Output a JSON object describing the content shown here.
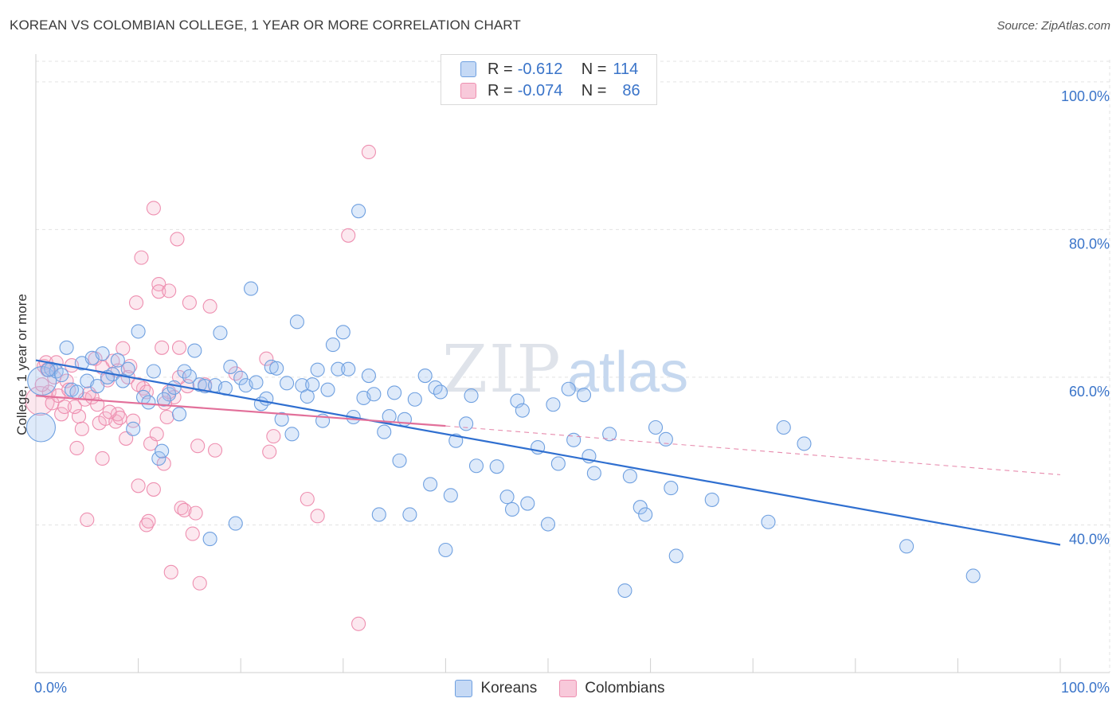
{
  "title": "KOREAN VS COLOMBIAN COLLEGE, 1 YEAR OR MORE CORRELATION CHART",
  "source": "Source: ZipAtlas.com",
  "watermark": {
    "zip": "ZIP",
    "atlas": "atlas"
  },
  "legend": {
    "r_label": "R =",
    "n_label": "N =",
    "series": [
      {
        "name": "Koreans",
        "r": "-0.612",
        "n": "114",
        "color": "#6fa0e0"
      },
      {
        "name": "Colombians",
        "r": "-0.074",
        "n": "86",
        "color": "#ee8fb0"
      }
    ]
  },
  "chart_data": {
    "type": "scatter",
    "title": "KOREAN VS COLOMBIAN COLLEGE, 1 YEAR OR MORE CORRELATION CHART",
    "xlabel": "",
    "ylabel": "College, 1 year or more",
    "xlim": [
      0,
      100
    ],
    "ylim": [
      20,
      103
    ],
    "x_tick_labels": [
      "0.0%",
      "100.0%"
    ],
    "y_tick_labels": [
      "40.0%",
      "60.0%",
      "80.0%",
      "100.0%"
    ],
    "y_ticks": [
      40,
      60,
      80,
      100
    ],
    "series": [
      {
        "name": "Koreans",
        "color": "#6fa0e0",
        "line_color": "#2f6fd0",
        "trend": {
          "x": [
            0,
            100
          ],
          "y": [
            62.3,
            37.3
          ]
        },
        "points": [
          {
            "x": 0.5,
            "y": 53.2,
            "big": true
          },
          {
            "x": 0.6,
            "y": 59.5,
            "big": true
          },
          {
            "x": 1.5,
            "y": 61.1
          },
          {
            "x": 2.0,
            "y": 60.8
          },
          {
            "x": 3.0,
            "y": 64.0
          },
          {
            "x": 3.5,
            "y": 58.3
          },
          {
            "x": 4.5,
            "y": 61.9
          },
          {
            "x": 5.0,
            "y": 59.5
          },
          {
            "x": 5.5,
            "y": 62.6
          },
          {
            "x": 6.5,
            "y": 63.2
          },
          {
            "x": 7.5,
            "y": 60.4
          },
          {
            "x": 8.0,
            "y": 62.3
          },
          {
            "x": 9.0,
            "y": 61.1
          },
          {
            "x": 9.5,
            "y": 53.0
          },
          {
            "x": 10.0,
            "y": 66.2
          },
          {
            "x": 10.5,
            "y": 57.3
          },
          {
            "x": 11.0,
            "y": 56.6
          },
          {
            "x": 11.5,
            "y": 60.8
          },
          {
            "x": 12.0,
            "y": 49.0
          },
          {
            "x": 12.3,
            "y": 50.0
          },
          {
            "x": 13.0,
            "y": 57.7
          },
          {
            "x": 13.5,
            "y": 58.6
          },
          {
            "x": 14.0,
            "y": 55.0
          },
          {
            "x": 14.5,
            "y": 60.8
          },
          {
            "x": 15.0,
            "y": 60.1
          },
          {
            "x": 15.5,
            "y": 63.6
          },
          {
            "x": 16.0,
            "y": 59.0
          },
          {
            "x": 16.5,
            "y": 58.8
          },
          {
            "x": 17.0,
            "y": 38.1
          },
          {
            "x": 17.5,
            "y": 58.9
          },
          {
            "x": 18.0,
            "y": 66.0
          },
          {
            "x": 18.5,
            "y": 58.5
          },
          {
            "x": 19.0,
            "y": 61.4
          },
          {
            "x": 19.5,
            "y": 40.2
          },
          {
            "x": 20.0,
            "y": 59.9
          },
          {
            "x": 20.5,
            "y": 58.9
          },
          {
            "x": 21.0,
            "y": 72.0
          },
          {
            "x": 21.5,
            "y": 59.3
          },
          {
            "x": 22.0,
            "y": 56.4
          },
          {
            "x": 22.5,
            "y": 57.1
          },
          {
            "x": 23.0,
            "y": 61.4
          },
          {
            "x": 23.5,
            "y": 61.2
          },
          {
            "x": 24.0,
            "y": 54.3
          },
          {
            "x": 24.5,
            "y": 59.2
          },
          {
            "x": 25.0,
            "y": 52.3
          },
          {
            "x": 25.5,
            "y": 67.5
          },
          {
            "x": 26.0,
            "y": 58.9
          },
          {
            "x": 26.5,
            "y": 57.4
          },
          {
            "x": 27.0,
            "y": 59.0
          },
          {
            "x": 27.5,
            "y": 61.0
          },
          {
            "x": 28.0,
            "y": 54.1
          },
          {
            "x": 28.5,
            "y": 58.3
          },
          {
            "x": 29.0,
            "y": 64.4
          },
          {
            "x": 29.5,
            "y": 61.1
          },
          {
            "x": 30.0,
            "y": 66.1
          },
          {
            "x": 30.5,
            "y": 61.1
          },
          {
            "x": 31.0,
            "y": 54.6
          },
          {
            "x": 31.5,
            "y": 82.5
          },
          {
            "x": 32.0,
            "y": 57.2
          },
          {
            "x": 32.5,
            "y": 60.2
          },
          {
            "x": 33.0,
            "y": 57.7
          },
          {
            "x": 33.5,
            "y": 41.4
          },
          {
            "x": 34.0,
            "y": 52.6
          },
          {
            "x": 34.5,
            "y": 54.7
          },
          {
            "x": 35.0,
            "y": 57.9
          },
          {
            "x": 35.5,
            "y": 48.7
          },
          {
            "x": 36.0,
            "y": 54.3
          },
          {
            "x": 36.5,
            "y": 41.4
          },
          {
            "x": 37.0,
            "y": 57.0
          },
          {
            "x": 38.0,
            "y": 60.2
          },
          {
            "x": 38.5,
            "y": 45.5
          },
          {
            "x": 39.0,
            "y": 58.6
          },
          {
            "x": 39.5,
            "y": 58.0
          },
          {
            "x": 40.0,
            "y": 36.6
          },
          {
            "x": 40.5,
            "y": 44.0
          },
          {
            "x": 41.0,
            "y": 51.4
          },
          {
            "x": 42.0,
            "y": 53.7
          },
          {
            "x": 42.5,
            "y": 57.5
          },
          {
            "x": 43.0,
            "y": 48.0
          },
          {
            "x": 45.0,
            "y": 47.9
          },
          {
            "x": 46.0,
            "y": 43.8
          },
          {
            "x": 46.5,
            "y": 42.1
          },
          {
            "x": 47.0,
            "y": 56.8
          },
          {
            "x": 47.5,
            "y": 55.5
          },
          {
            "x": 48.0,
            "y": 42.9
          },
          {
            "x": 49.0,
            "y": 50.5
          },
          {
            "x": 50.0,
            "y": 40.1
          },
          {
            "x": 50.5,
            "y": 56.3
          },
          {
            "x": 51.0,
            "y": 48.3
          },
          {
            "x": 52.0,
            "y": 58.4
          },
          {
            "x": 52.5,
            "y": 51.5
          },
          {
            "x": 53.5,
            "y": 57.6
          },
          {
            "x": 54.0,
            "y": 49.3
          },
          {
            "x": 54.5,
            "y": 47.0
          },
          {
            "x": 56.0,
            "y": 52.3
          },
          {
            "x": 57.5,
            "y": 31.1
          },
          {
            "x": 58.0,
            "y": 46.6
          },
          {
            "x": 59.0,
            "y": 42.4
          },
          {
            "x": 59.5,
            "y": 41.4
          },
          {
            "x": 60.5,
            "y": 53.2
          },
          {
            "x": 61.5,
            "y": 51.6
          },
          {
            "x": 62.0,
            "y": 45.0
          },
          {
            "x": 62.5,
            "y": 35.8
          },
          {
            "x": 66.0,
            "y": 43.4
          },
          {
            "x": 71.5,
            "y": 40.4
          },
          {
            "x": 73.0,
            "y": 53.2
          },
          {
            "x": 75.0,
            "y": 51.0
          },
          {
            "x": 85.0,
            "y": 37.1
          },
          {
            "x": 91.5,
            "y": 33.1
          },
          {
            "x": 1.2,
            "y": 61.0
          },
          {
            "x": 2.5,
            "y": 60.3
          },
          {
            "x": 4.0,
            "y": 58.0
          },
          {
            "x": 6.0,
            "y": 58.8
          },
          {
            "x": 7.0,
            "y": 60.0
          },
          {
            "x": 8.5,
            "y": 59.5
          },
          {
            "x": 12.5,
            "y": 57.0
          }
        ]
      },
      {
        "name": "Colombians",
        "color": "#ee8fb0",
        "line_color": "#e2709a",
        "trend": {
          "x": [
            0,
            40
          ],
          "y": [
            57.5,
            53.4
          ]
        },
        "trend_extension": {
          "x": [
            40,
            100
          ],
          "y": [
            53.4,
            46.8
          ]
        },
        "points": [
          {
            "x": 0.4,
            "y": 56.8,
            "big": true
          },
          {
            "x": 0.8,
            "y": 61.5
          },
          {
            "x": 1.0,
            "y": 62.0
          },
          {
            "x": 1.3,
            "y": 58.0
          },
          {
            "x": 1.6,
            "y": 56.5
          },
          {
            "x": 1.8,
            "y": 60.0
          },
          {
            "x": 2.2,
            "y": 57.5
          },
          {
            "x": 2.5,
            "y": 55.0
          },
          {
            "x": 2.8,
            "y": 56.0
          },
          {
            "x": 3.0,
            "y": 59.5
          },
          {
            "x": 3.5,
            "y": 61.6
          },
          {
            "x": 4.0,
            "y": 50.4
          },
          {
            "x": 4.2,
            "y": 54.7
          },
          {
            "x": 4.5,
            "y": 53.0
          },
          {
            "x": 4.8,
            "y": 57.0
          },
          {
            "x": 5.0,
            "y": 40.7
          },
          {
            "x": 5.5,
            "y": 57.3
          },
          {
            "x": 6.0,
            "y": 56.3
          },
          {
            "x": 6.2,
            "y": 53.8
          },
          {
            "x": 6.5,
            "y": 49.0
          },
          {
            "x": 6.8,
            "y": 54.4
          },
          {
            "x": 7.0,
            "y": 59.6
          },
          {
            "x": 7.5,
            "y": 62.2
          },
          {
            "x": 7.8,
            "y": 54.0
          },
          {
            "x": 8.0,
            "y": 55.0
          },
          {
            "x": 8.2,
            "y": 54.5
          },
          {
            "x": 8.5,
            "y": 63.9
          },
          {
            "x": 8.8,
            "y": 51.7
          },
          {
            "x": 9.0,
            "y": 60.0
          },
          {
            "x": 9.5,
            "y": 54.1
          },
          {
            "x": 9.8,
            "y": 70.1
          },
          {
            "x": 10.0,
            "y": 45.3
          },
          {
            "x": 10.3,
            "y": 76.2
          },
          {
            "x": 10.5,
            "y": 58.5
          },
          {
            "x": 10.8,
            "y": 40.0
          },
          {
            "x": 11.0,
            "y": 40.5
          },
          {
            "x": 11.2,
            "y": 51.0
          },
          {
            "x": 11.5,
            "y": 44.8
          },
          {
            "x": 11.5,
            "y": 82.9
          },
          {
            "x": 12.0,
            "y": 72.6
          },
          {
            "x": 12.0,
            "y": 71.6
          },
          {
            "x": 12.3,
            "y": 64.0
          },
          {
            "x": 12.5,
            "y": 48.3
          },
          {
            "x": 12.8,
            "y": 54.6
          },
          {
            "x": 13.0,
            "y": 71.7
          },
          {
            "x": 13.2,
            "y": 33.6
          },
          {
            "x": 13.5,
            "y": 57.3
          },
          {
            "x": 13.8,
            "y": 78.7
          },
          {
            "x": 14.0,
            "y": 64.0
          },
          {
            "x": 14.2,
            "y": 42.3
          },
          {
            "x": 14.5,
            "y": 42.0
          },
          {
            "x": 14.8,
            "y": 58.8
          },
          {
            "x": 15.0,
            "y": 70.1
          },
          {
            "x": 15.3,
            "y": 38.8
          },
          {
            "x": 15.6,
            "y": 41.6
          },
          {
            "x": 15.8,
            "y": 50.7
          },
          {
            "x": 16.0,
            "y": 32.1
          },
          {
            "x": 17.0,
            "y": 69.6
          },
          {
            "x": 17.5,
            "y": 50.1
          },
          {
            "x": 19.5,
            "y": 60.5
          },
          {
            "x": 22.5,
            "y": 62.5
          },
          {
            "x": 22.8,
            "y": 49.9
          },
          {
            "x": 23.2,
            "y": 52.0
          },
          {
            "x": 26.5,
            "y": 43.5
          },
          {
            "x": 27.5,
            "y": 41.2
          },
          {
            "x": 30.5,
            "y": 79.2
          },
          {
            "x": 31.5,
            "y": 26.6
          },
          {
            "x": 32.5,
            "y": 90.5
          },
          {
            "x": 0.6,
            "y": 59.0
          },
          {
            "x": 1.1,
            "y": 61.0
          },
          {
            "x": 2.0,
            "y": 62.0
          },
          {
            "x": 3.2,
            "y": 58.3
          },
          {
            "x": 3.8,
            "y": 56.0
          },
          {
            "x": 5.2,
            "y": 57.8
          },
          {
            "x": 5.8,
            "y": 62.5
          },
          {
            "x": 6.5,
            "y": 61.3
          },
          {
            "x": 7.2,
            "y": 55.3
          },
          {
            "x": 8.0,
            "y": 60.9
          },
          {
            "x": 9.2,
            "y": 61.5
          },
          {
            "x": 10.0,
            "y": 59.0
          },
          {
            "x": 10.8,
            "y": 58.0
          },
          {
            "x": 11.8,
            "y": 52.3
          },
          {
            "x": 12.6,
            "y": 56.5
          },
          {
            "x": 13.0,
            "y": 58.0
          },
          {
            "x": 14.0,
            "y": 60.0
          },
          {
            "x": 16.5,
            "y": 59.0
          }
        ]
      }
    ]
  }
}
